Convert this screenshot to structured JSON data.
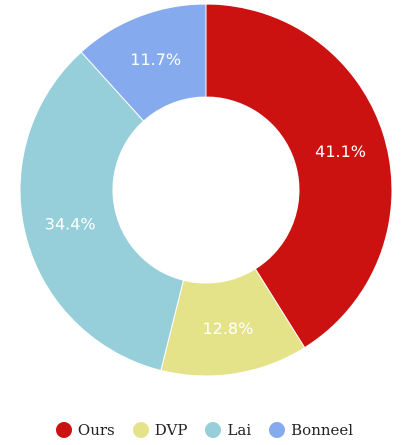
{
  "chart_data": {
    "type": "pie",
    "variant": "donut",
    "title": "",
    "legend_position": "bottom",
    "slices": [
      {
        "name": "Ours",
        "value": 41.1,
        "label": "41.1%",
        "color": "#cc1111"
      },
      {
        "name": "DVP",
        "value": 12.8,
        "label": "12.8%",
        "color": "#e5e38a"
      },
      {
        "name": "Lai",
        "value": 34.4,
        "label": "34.4%",
        "color": "#96cfd9"
      },
      {
        "name": "Bonneel",
        "value": 11.7,
        "label": "11.7%",
        "color": "#86aaee"
      }
    ]
  }
}
